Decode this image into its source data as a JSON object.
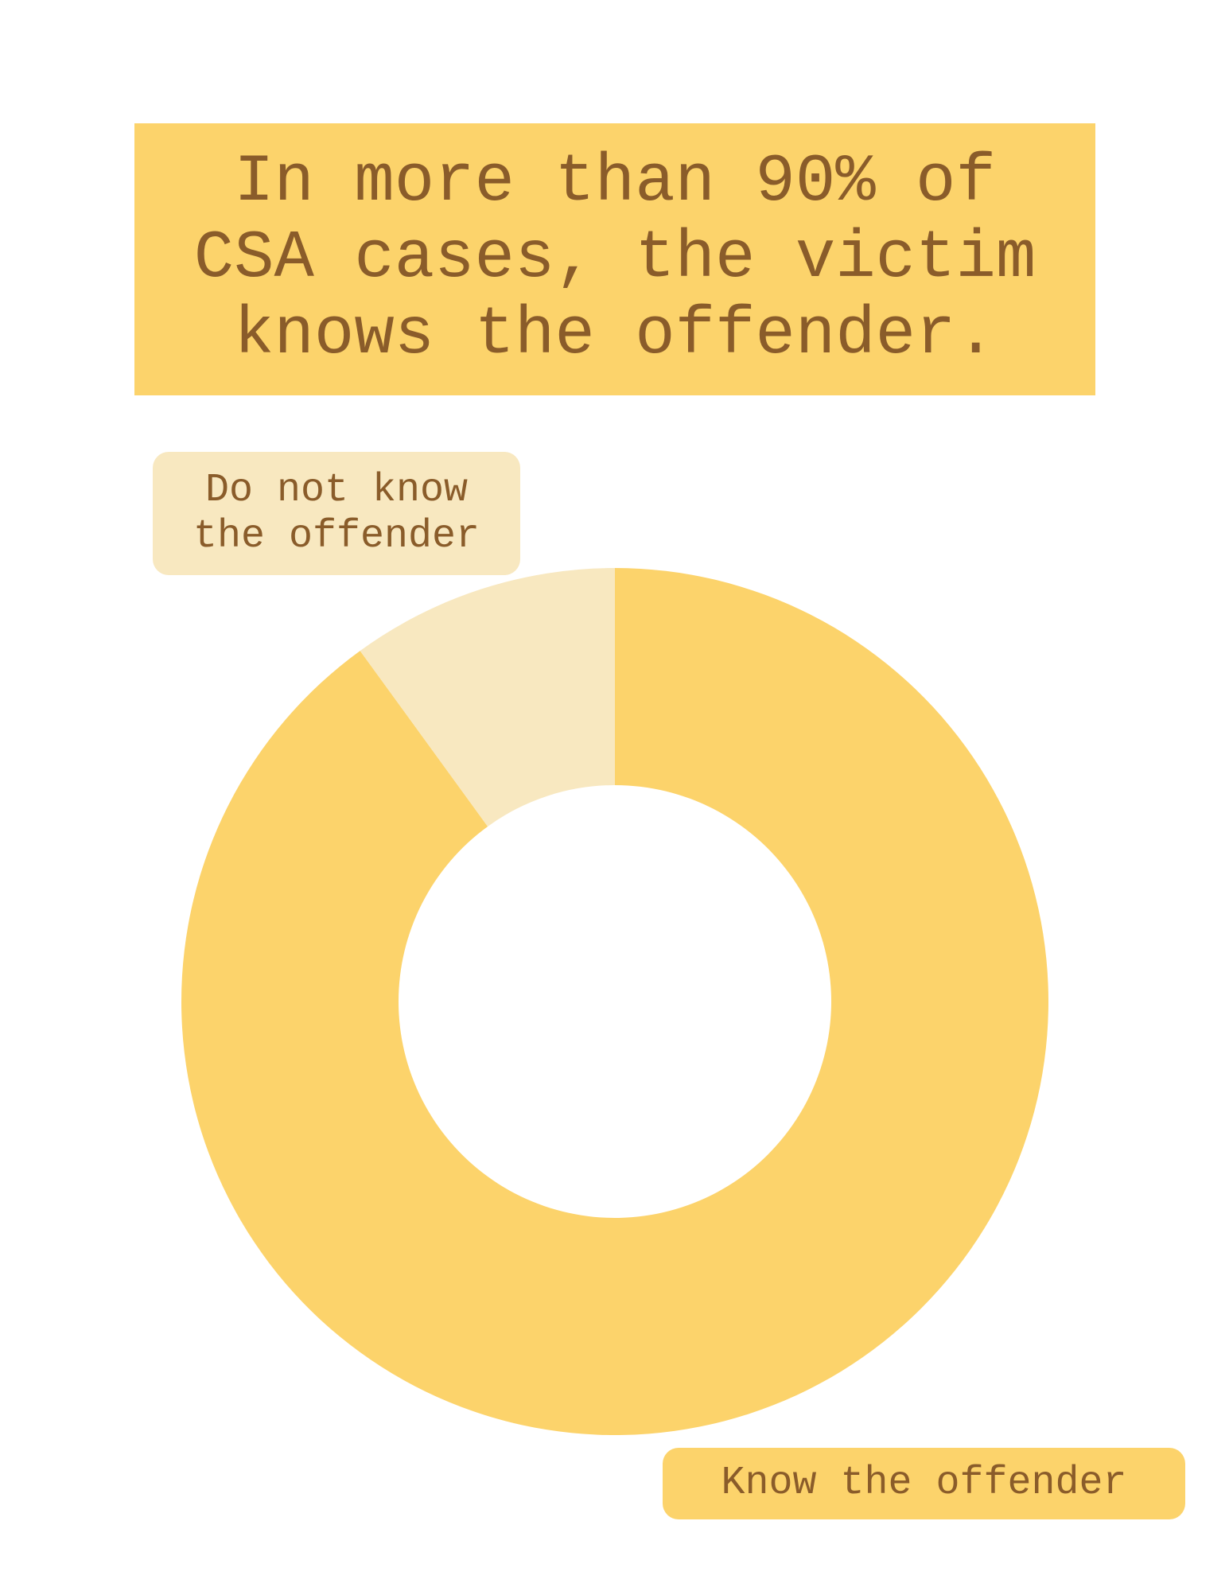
{
  "chart_data": {
    "type": "donut",
    "title": "In more than 90% of CSA cases, the victim knows the offender.",
    "categories": [
      "Know the offender",
      "Do not know the offender"
    ],
    "values": [
      90,
      10
    ],
    "colors": [
      "#fcd36b",
      "#f8e8c0"
    ]
  }
}
